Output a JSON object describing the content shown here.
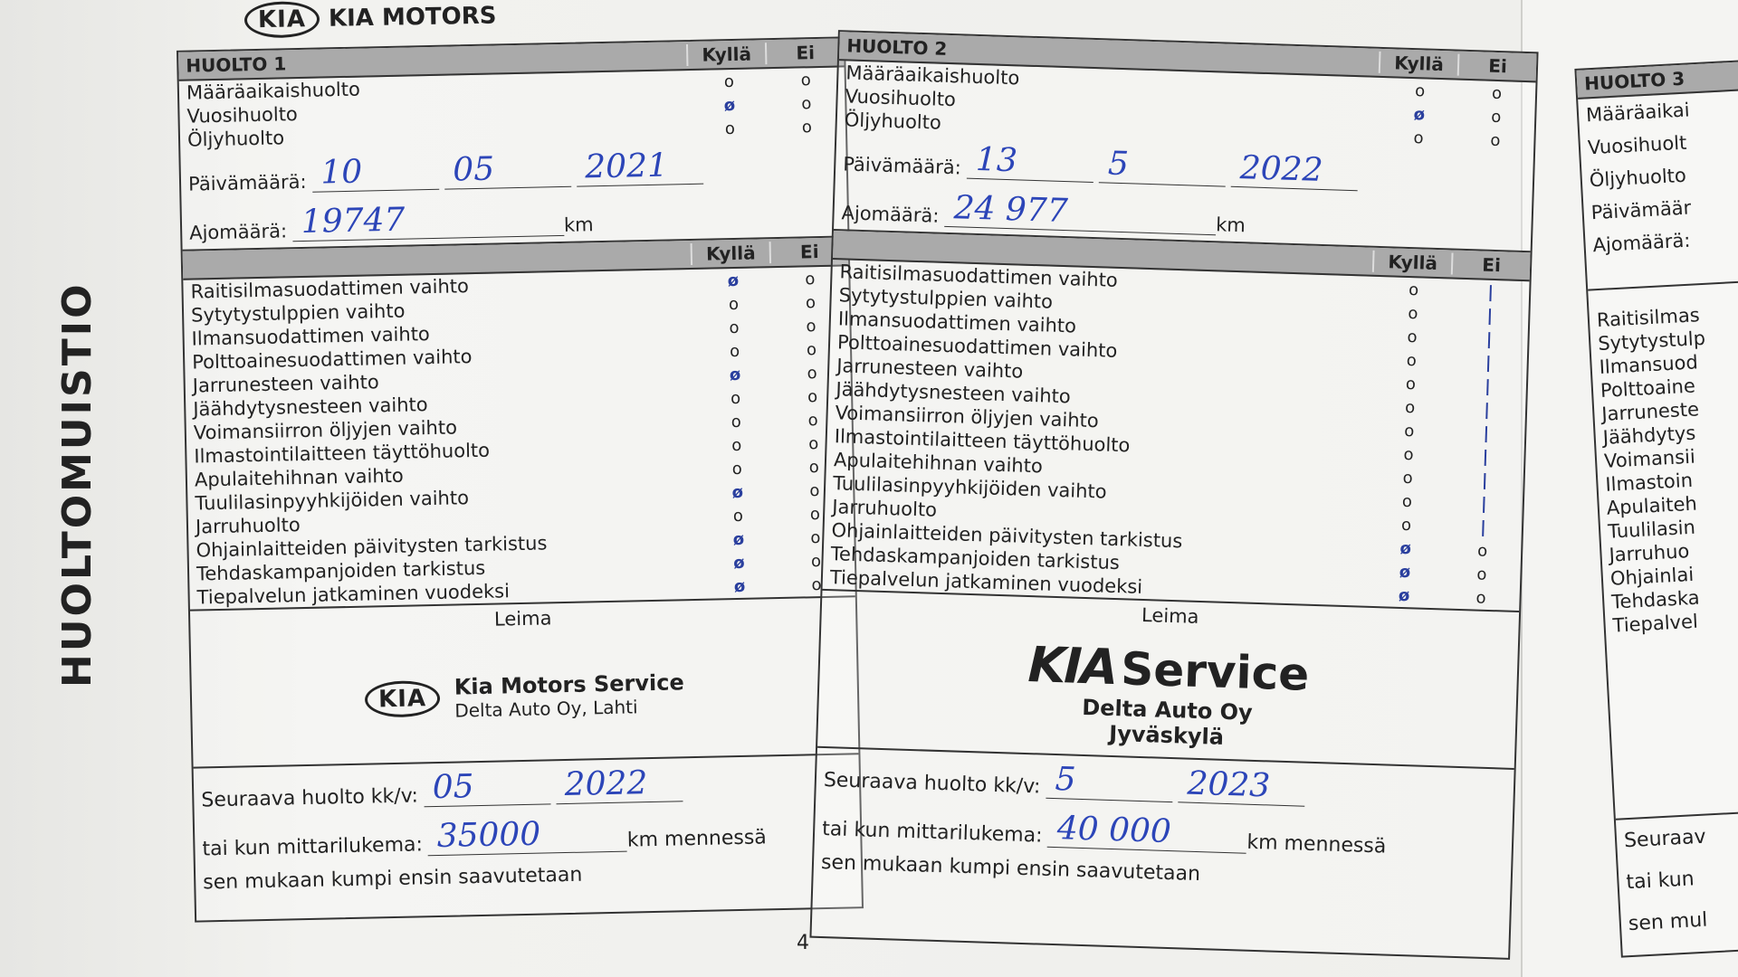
{
  "brand": {
    "logo": "KIA",
    "name": "KIA MOTORS"
  },
  "side_title": "HUOLTOMUISTIO",
  "columns": {
    "yes": "Kyllä",
    "no": "Ei"
  },
  "service_types": [
    "Määräaikaishuolto",
    "Vuosihuolto",
    "Öljyhuolto"
  ],
  "tasks": [
    "Raitisilmasuodattimen vaihto",
    "Sytytystulppien vaihto",
    "Ilmansuodattimen vaihto",
    "Polttoainesuodattimen vaihto",
    "Jarrunesteen vaihto",
    "Jäähdytysnesteen vaihto",
    "Voimansiirron öljyjen vaihto",
    "Ilmastointilaitteen täyttöhuolto",
    "Apulaitehihnan vaihto",
    "Tuulilasinpyyhkijöiden vaihto",
    "Jarruhuolto",
    "Ohjainlaitteiden päivitysten tarkistus",
    "Tehdaskampanjoiden tarkistus",
    "Tiepalvelun jatkaminen vuodeksi"
  ],
  "labels": {
    "date": "Päivämäärä:",
    "mileage": "Ajomäärä:",
    "km": "km",
    "stamp": "Leima",
    "next_service": "Seuraava huolto kk/v:",
    "or_odometer": "tai kun mittarilukema:",
    "km_by": "km mennessä",
    "whichever": "sen mukaan kumpi ensin saavutetaan"
  },
  "huolto1": {
    "title": "HUOLTO 1",
    "type_checked": [
      false,
      true,
      false
    ],
    "date": [
      "10",
      "05",
      "2021"
    ],
    "mileage": "19747",
    "tasks_checked": [
      true,
      false,
      false,
      false,
      true,
      false,
      false,
      false,
      false,
      true,
      false,
      true,
      true,
      true
    ],
    "stamp": {
      "logo": "KIA",
      "name": "Kia Motors Service",
      "dealer": "Delta Auto Oy, Lahti"
    },
    "next_date": [
      "05",
      "2022"
    ],
    "next_km": "35000"
  },
  "huolto2": {
    "title": "HUOLTO 2",
    "type_checked": [
      false,
      true,
      false
    ],
    "date": [
      "13",
      "5",
      "2022"
    ],
    "mileage": "24 977",
    "tasks_checked": [
      false,
      false,
      false,
      false,
      false,
      false,
      false,
      false,
      false,
      false,
      false,
      true,
      true,
      true
    ],
    "tasks_no_struck": [
      true,
      true,
      true,
      true,
      true,
      true,
      true,
      true,
      true,
      true,
      true,
      false,
      false,
      false
    ],
    "stamp": {
      "logo": "KIA",
      "name": "Service",
      "dealer": "Delta Auto Oy",
      "city": "Jyväskylä"
    },
    "next_date": [
      "5",
      "2023"
    ],
    "next_km": "40 000"
  },
  "huolto3": {
    "title": "HUOLTO 3",
    "labels": [
      "Määräaikai",
      "Vuosihuolt",
      "Öljyhuolto",
      "Päivämäär",
      "Ajomäärä:"
    ],
    "tasks": [
      "Raitisilmas",
      "Sytytystulp",
      "Ilmansuod",
      "Polttoaine",
      "Jarruneste",
      "Jäähdytys",
      "Voimansii",
      "Ilmastoin",
      "Apulaiteh",
      "Tuulilasin",
      "Jarruhuo",
      "Ohjainlai",
      "Tehdaska",
      "Tiepalvel"
    ],
    "next": [
      "Seuraav",
      "tai kun",
      "sen mul"
    ]
  },
  "page_number": "4",
  "colors": {
    "ink": "#2c45b8",
    "header": "#aaaaaa"
  }
}
